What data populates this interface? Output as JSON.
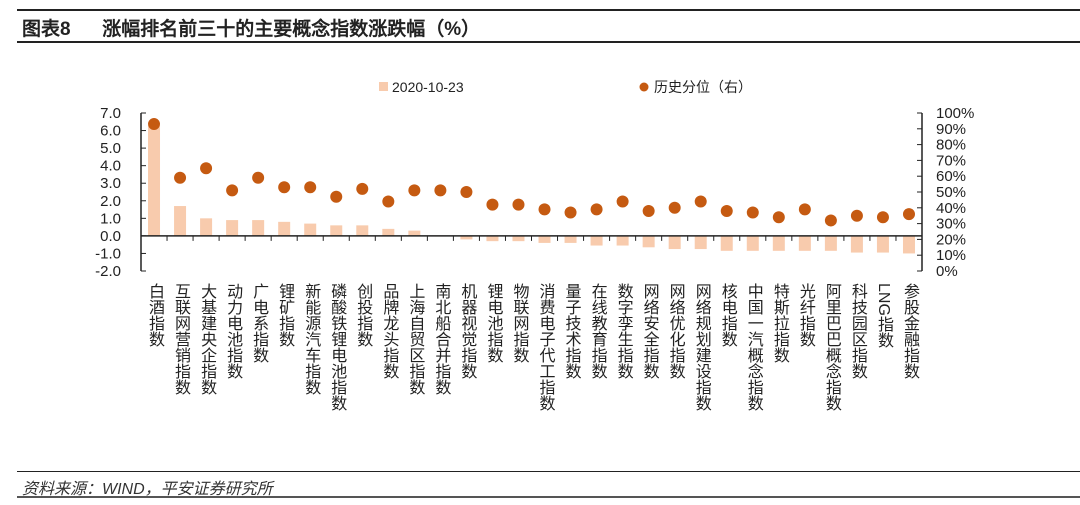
{
  "header": {
    "figure_no": "图表8",
    "title": "涨幅排名前三十的主要概念指数涨跌幅（%）"
  },
  "footer": {
    "source": "资料来源：WIND，平安证券研究所"
  },
  "chart_data": {
    "type": "bar+scatter",
    "title": "涨幅排名前三十的主要概念指数涨跌幅（%）",
    "categories": [
      "白酒指数",
      "互联网营销指数",
      "大基建央企指数",
      "动力电池指数",
      "广电系指数",
      "锂矿指数",
      "新能源汽车指数",
      "磷酸铁锂电池指数",
      "创投指数",
      "品牌龙头指数",
      "上海自贸区指数",
      "南北船合并指数",
      "机器视觉指数",
      "锂电池指数",
      "物联网指数",
      "消费电子代工指数",
      "量子技术指数",
      "在线教育指数",
      "数字孪生指数",
      "网络安全指数",
      "网络优化指数",
      "网络规划建设指数",
      "核电指数",
      "中国一汽概念指数",
      "特斯拉指数",
      "光纤指数",
      "阿里巴巴概念指数",
      "科技园区指数",
      "LNG指数",
      "参股金融指数"
    ],
    "series": [
      {
        "name": "2020-10-23",
        "type": "bar",
        "axis": "left",
        "color": "#F8CBAD",
        "values": [
          6.3,
          1.7,
          1.0,
          0.9,
          0.9,
          0.8,
          0.7,
          0.6,
          0.6,
          0.4,
          0.3,
          0.02,
          -0.2,
          -0.3,
          -0.3,
          -0.4,
          -0.4,
          -0.55,
          -0.55,
          -0.65,
          -0.75,
          -0.75,
          -0.85,
          -0.85,
          -0.85,
          -0.85,
          -0.85,
          -0.95,
          -0.95,
          -1.0
        ]
      },
      {
        "name": "历史分位（右）",
        "type": "scatter",
        "axis": "right",
        "color": "#C55A11",
        "values": [
          93,
          59,
          65,
          51,
          59,
          53,
          53,
          47,
          52,
          44,
          51,
          51,
          50,
          42,
          42,
          39,
          37,
          39,
          44,
          38,
          40,
          44,
          38,
          37,
          34,
          39,
          32,
          35,
          34,
          36
        ]
      }
    ],
    "y_left": {
      "min": -2,
      "max": 7,
      "step": 1,
      "ticks": [
        "-2.0",
        "-1.0",
        "0.0",
        "1.0",
        "2.0",
        "3.0",
        "4.0",
        "5.0",
        "6.0",
        "7.0"
      ]
    },
    "y_right": {
      "min": 0,
      "max": 100,
      "step": 10,
      "ticks": [
        "0%",
        "10%",
        "20%",
        "30%",
        "40%",
        "50%",
        "60%",
        "70%",
        "80%",
        "90%",
        "100%"
      ]
    },
    "legend": {
      "position": "top",
      "items": [
        "2020-10-23",
        "历史分位（右）"
      ]
    },
    "grid": false
  }
}
